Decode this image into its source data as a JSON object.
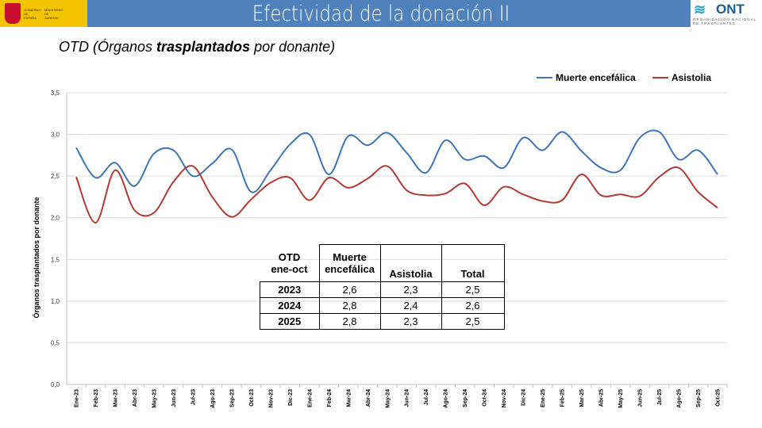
{
  "header": {
    "title": "Efectividad de la donación II",
    "left_logo": "GOBIERNO DE ESPAÑA MINISTERIO DE SANIDAD",
    "right_logo": "ONT",
    "right_logo_sub": "ORGANIZACIÓN NACIONAL DE TRASPLANTES"
  },
  "subtitle": {
    "pre": "OTD (Órganos ",
    "bold": "trasplantados",
    "post": " por donante)"
  },
  "colors": {
    "header": "#4f81bd",
    "muerte": "#3e75b4",
    "asistolia": "#b23a34"
  },
  "chart_data": {
    "type": "line",
    "ylabel": "Órganos trasplantados por donante",
    "ylim": [
      0,
      3.5
    ],
    "yticks": [
      "0,0",
      "0,5",
      "1,0",
      "1,5",
      "2,0",
      "2,5",
      "3,0",
      "3,5"
    ],
    "grid": true,
    "legend": "top-right",
    "categories": [
      "Ene-23",
      "Feb-23",
      "Mar-23",
      "Abr-23",
      "May-23",
      "Jun-23",
      "Jul-23",
      "Ago-23",
      "Sep-23",
      "Oct-23",
      "Nov-23",
      "Dic-23",
      "Ene-24",
      "Feb-24",
      "Mar-24",
      "Abr-24",
      "May-24",
      "Jun-24",
      "Jul-24",
      "Ago-24",
      "Sep-24",
      "Oct-24",
      "Nov-24",
      "Dic-24",
      "Ene-25",
      "Feb-25",
      "Mar-25",
      "Abr-25",
      "May-25",
      "Jun-25",
      "Jul-25",
      "Ago-25",
      "Sep-25",
      "Oct-25"
    ],
    "series": [
      {
        "name": "Muerte encefálica",
        "color": "#3e75b4",
        "values": [
          2.84,
          2.48,
          2.66,
          2.38,
          2.77,
          2.81,
          2.5,
          2.65,
          2.82,
          2.31,
          2.57,
          2.88,
          3.0,
          2.52,
          2.98,
          2.87,
          3.02,
          2.78,
          2.54,
          2.93,
          2.7,
          2.74,
          2.6,
          2.96,
          2.81,
          3.03,
          2.8,
          2.6,
          2.57,
          2.96,
          3.03,
          2.7,
          2.81,
          2.52
        ]
      },
      {
        "name": "Asistolia",
        "color": "#b23a34",
        "values": [
          2.49,
          1.94,
          2.57,
          2.09,
          2.06,
          2.43,
          2.62,
          2.25,
          2.01,
          2.22,
          2.42,
          2.48,
          2.21,
          2.48,
          2.36,
          2.47,
          2.62,
          2.33,
          2.27,
          2.29,
          2.41,
          2.15,
          2.37,
          2.28,
          2.2,
          2.21,
          2.52,
          2.27,
          2.28,
          2.26,
          2.49,
          2.6,
          2.31,
          2.12
        ]
      }
    ]
  },
  "table": {
    "header": [
      "OTD\nene-oct",
      "Muerte\nencefálica",
      "Asistolia",
      "Total"
    ],
    "rows": [
      [
        "2023",
        "2,6",
        "2,3",
        "2,5"
      ],
      [
        "2024",
        "2,8",
        "2,4",
        "2,6"
      ],
      [
        "2025",
        "2,8",
        "2,3",
        "2,5"
      ]
    ]
  }
}
